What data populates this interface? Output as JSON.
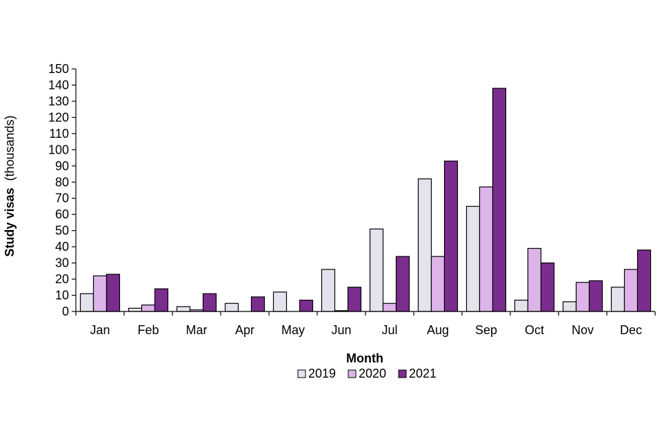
{
  "chart_data": {
    "type": "bar",
    "xlabel": "Month",
    "ylabel_bold": "Study visas",
    "ylabel_unit": "(thousands)",
    "ylim": [
      0,
      150
    ],
    "yticks": [
      "0",
      "10",
      "20",
      "30",
      "40",
      "50",
      "60",
      "70",
      "80",
      "90",
      "100",
      "110",
      "120",
      "130",
      "140",
      "150"
    ],
    "grid": false,
    "legend_position": "bottom",
    "categories": [
      "Jan",
      "Feb",
      "Mar",
      "Apr",
      "May",
      "Jun",
      "Jul",
      "Aug",
      "Sep",
      "Oct",
      "Nov",
      "Dec"
    ],
    "series": [
      {
        "name": "2019",
        "color": "#e4e2ec",
        "values": [
          11,
          2,
          3,
          5,
          12,
          26,
          51,
          82,
          65,
          7,
          6,
          15
        ]
      },
      {
        "name": "2020",
        "color": "#dcb4e8",
        "values": [
          22,
          4,
          1,
          0,
          0,
          0.5,
          5,
          34,
          77,
          39,
          18,
          26
        ]
      },
      {
        "name": "2021",
        "color": "#7b2d8e",
        "values": [
          23,
          14,
          11,
          9,
          7,
          15,
          34,
          93,
          138,
          30,
          19,
          38
        ]
      }
    ]
  }
}
